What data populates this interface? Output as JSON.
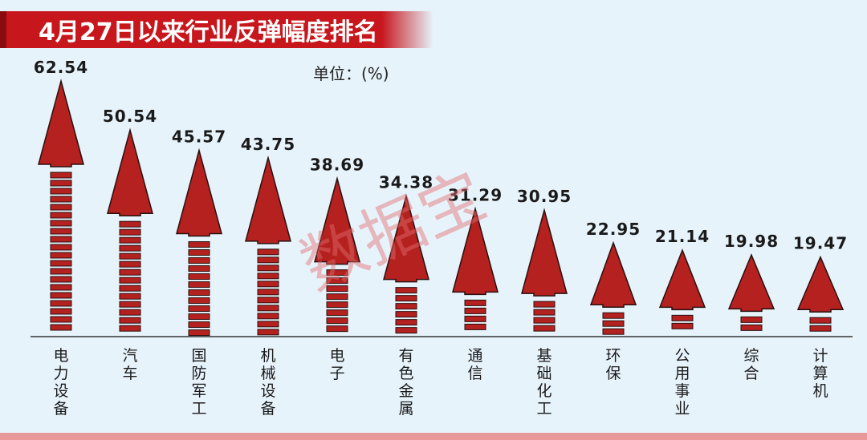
{
  "title": "4月27日以来行业反弹幅度排名",
  "unit_label": "单位：(%)",
  "watermark": "数据宝",
  "colors": {
    "background": "#e7f3fb",
    "title_band": "#c8161d",
    "arrow_fill": "#b5211f",
    "arrow_stroke": "#2a1010",
    "bottom_stripe": "#e89a9a",
    "watermark": "#e26d6d"
  },
  "chart_data": {
    "type": "bar",
    "title": "4月27日以来行业反弹幅度排名",
    "ylabel": "单位：(%)",
    "xlabel": "",
    "ylim": [
      0,
      70
    ],
    "grid": false,
    "legend": "none",
    "categories": [
      "电力设备",
      "汽车",
      "国防军工",
      "机械设备",
      "电子",
      "有色金属",
      "通信",
      "基础化工",
      "环保",
      "公用事业",
      "综合",
      "计算机"
    ],
    "values": [
      62.54,
      50.54,
      45.57,
      43.75,
      38.69,
      34.38,
      31.29,
      30.95,
      22.95,
      21.14,
      19.98,
      19.47
    ],
    "value_labels": [
      "62.54",
      "50.54",
      "45.57",
      "43.75",
      "38.69",
      "34.38",
      "31.29",
      "30.95",
      "22.95",
      "21.14",
      "19.98",
      "19.47"
    ]
  }
}
